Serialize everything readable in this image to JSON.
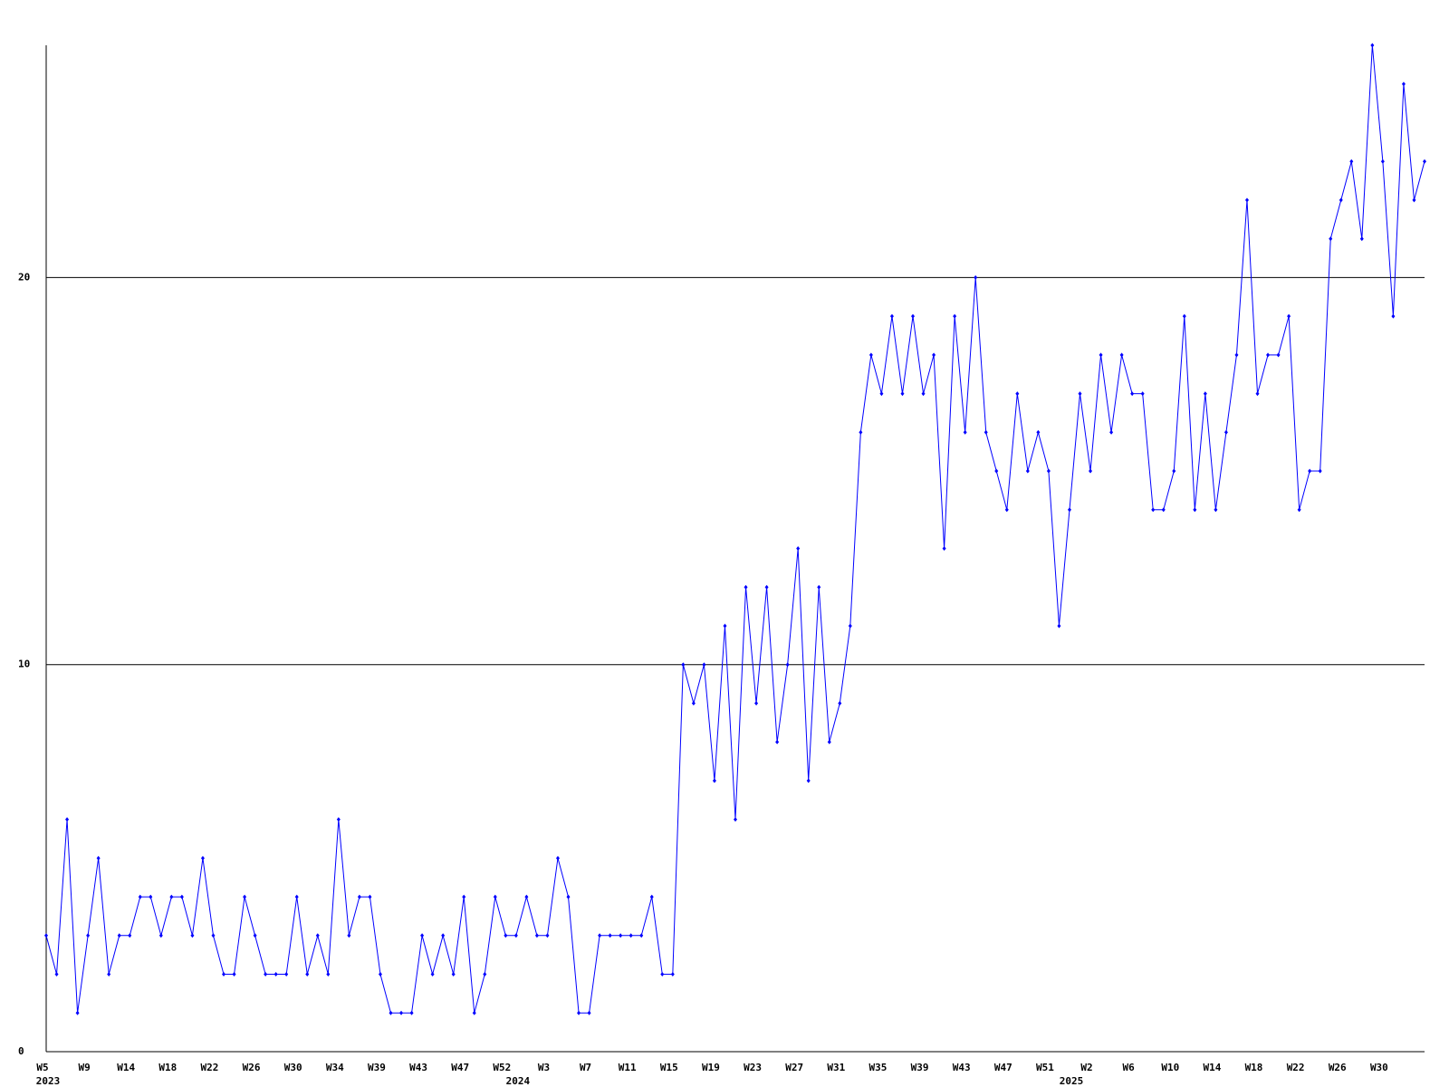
{
  "chart_data": {
    "type": "line",
    "categories": [
      "W5",
      null,
      null,
      null,
      "W9",
      null,
      null,
      null,
      "W14",
      null,
      null,
      null,
      "W18",
      null,
      null,
      null,
      "W22",
      null,
      null,
      null,
      "W26",
      null,
      null,
      null,
      "W30",
      null,
      null,
      null,
      "W34",
      null,
      null,
      null,
      "W39",
      null,
      null,
      null,
      "W43",
      null,
      null,
      null,
      "W47",
      null,
      null,
      null,
      "W52",
      null,
      null,
      null,
      "W3",
      null,
      null,
      null,
      "W7",
      null,
      null,
      null,
      "W11",
      null,
      null,
      null,
      "W15",
      null,
      null,
      null,
      "W19",
      null,
      null,
      null,
      "W23",
      null,
      null,
      null,
      "W27",
      null,
      null,
      null,
      "W31",
      null,
      null,
      null,
      "W35",
      null,
      null,
      null,
      "W39",
      null,
      null,
      null,
      "W43",
      null,
      null,
      null,
      "W47",
      null,
      null,
      null,
      "W51",
      null,
      null,
      null,
      "W2",
      null,
      null,
      null,
      "W6",
      null,
      null,
      null,
      "W10",
      null,
      null,
      null,
      "W14",
      null,
      null,
      null,
      "W18",
      null,
      null,
      null,
      "W22",
      null,
      null,
      null,
      "W26",
      null,
      null,
      null,
      "W30",
      null,
      null,
      null,
      null
    ],
    "year_categories": [
      "2023",
      null,
      null,
      null,
      null,
      null,
      null,
      null,
      null,
      null,
      null,
      null,
      null,
      null,
      null,
      null,
      null,
      null,
      null,
      null,
      null,
      null,
      null,
      null,
      null,
      null,
      null,
      null,
      null,
      null,
      null,
      null,
      null,
      null,
      null,
      null,
      null,
      null,
      null,
      null,
      null,
      null,
      null,
      null,
      null,
      "2024",
      null,
      null,
      null,
      null,
      null,
      null,
      null,
      null,
      null,
      null,
      null,
      null,
      null,
      null,
      null,
      null,
      null,
      null,
      null,
      null,
      null,
      null,
      null,
      null,
      null,
      null,
      null,
      null,
      null,
      null,
      null,
      null,
      null,
      null,
      null,
      null,
      null,
      null,
      null,
      null,
      null,
      null,
      null,
      null,
      null,
      null,
      null,
      null,
      null,
      null,
      null,
      null,
      "2025",
      null,
      null,
      null,
      null,
      null,
      null,
      null,
      null,
      null,
      null,
      null,
      null,
      null,
      null,
      null,
      null,
      null,
      null,
      null,
      null,
      null,
      null,
      null,
      null,
      null,
      null,
      null,
      null,
      null,
      null,
      null,
      null,
      null,
      null
    ],
    "series": [
      {
        "color": "#0000ff",
        "values": [
          3,
          2,
          6,
          1,
          3,
          5,
          2,
          3,
          3,
          4,
          4,
          3,
          4,
          4,
          3,
          5,
          3,
          2,
          2,
          4,
          3,
          2,
          2,
          2,
          4,
          2,
          3,
          2,
          6,
          3,
          4,
          4,
          2,
          1,
          1,
          1,
          3,
          2,
          3,
          2,
          4,
          1,
          2,
          4,
          3,
          3,
          4,
          3,
          3,
          5,
          4,
          1,
          1,
          3,
          3,
          3,
          3,
          3,
          4,
          2,
          2,
          10,
          9,
          10,
          7,
          11,
          6,
          12,
          9,
          12,
          8,
          10,
          13,
          7,
          12,
          8,
          9,
          11,
          16,
          18,
          17,
          19,
          17,
          19,
          17,
          18,
          13,
          19,
          16,
          20,
          16,
          15,
          14,
          17,
          15,
          16,
          15,
          11,
          14,
          17,
          15,
          18,
          16,
          18,
          17,
          17,
          14,
          14,
          15,
          19,
          14,
          17,
          14,
          16,
          18,
          22,
          17,
          18,
          18,
          19,
          14,
          15,
          15,
          21,
          22,
          23,
          21,
          26,
          23,
          19,
          25,
          22,
          23
        ]
      }
    ],
    "ylim": [
      0,
      26
    ],
    "yticks": [
      0,
      10,
      20
    ],
    "grid": true
  }
}
